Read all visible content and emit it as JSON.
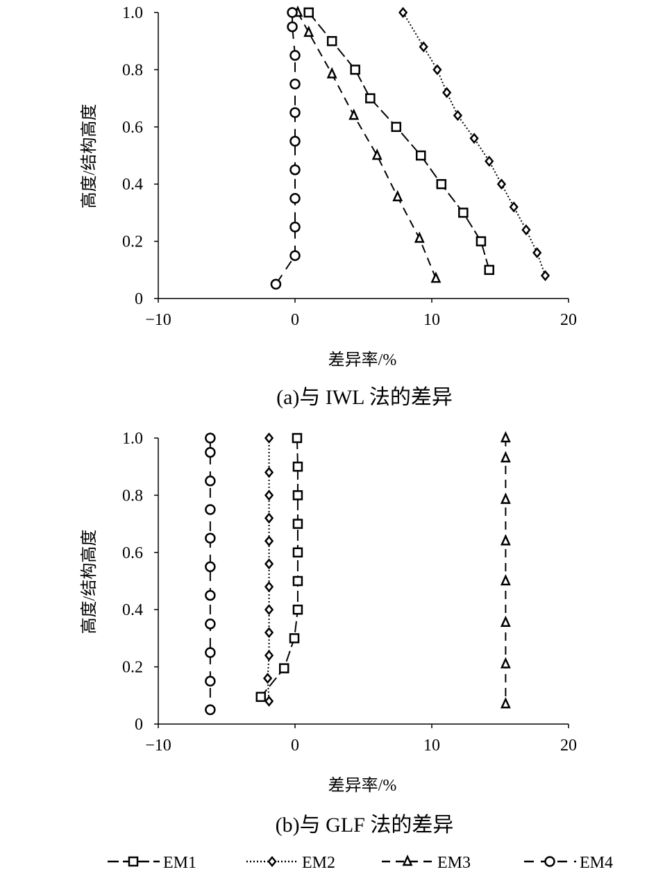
{
  "legend": [
    {
      "name": "EM1",
      "marker": "square",
      "dash": "long-dash"
    },
    {
      "name": "EM2",
      "marker": "diamond",
      "dash": "dotted"
    },
    {
      "name": "EM3",
      "marker": "triangle",
      "dash": "dash"
    },
    {
      "name": "EM4",
      "marker": "circle",
      "dash": "long-dash-gap"
    }
  ],
  "chart_data": [
    {
      "type": "line",
      "caption": "(a)与 IWL 法的差异",
      "xlabel": "差异率/%",
      "ylabel": "高度/结构高度",
      "xlim": [
        -10,
        20
      ],
      "ylim": [
        0,
        1.0
      ],
      "xticks": [
        "−10",
        "0",
        "10",
        "20"
      ],
      "yticks": [
        "0",
        "0.2",
        "0.4",
        "0.6",
        "0.8",
        "1.0"
      ],
      "grid": false,
      "series": [
        {
          "name": "EM1",
          "x": [
            1.0,
            2.7,
            4.4,
            5.5,
            7.4,
            9.2,
            10.7,
            12.3,
            13.6,
            14.2
          ],
          "y": [
            1.0,
            0.9,
            0.8,
            0.7,
            0.6,
            0.5,
            0.4,
            0.3,
            0.2,
            0.1
          ]
        },
        {
          "name": "EM2",
          "x": [
            7.9,
            9.4,
            10.4,
            11.1,
            11.9,
            13.1,
            14.2,
            15.1,
            16.0,
            16.9,
            17.7,
            18.3
          ],
          "y": [
            1.0,
            0.88,
            0.8,
            0.72,
            0.64,
            0.56,
            0.48,
            0.4,
            0.32,
            0.24,
            0.16,
            0.08
          ]
        },
        {
          "name": "EM3",
          "x": [
            0.2,
            1.0,
            2.7,
            4.3,
            6.0,
            7.5,
            9.1,
            10.3
          ],
          "y": [
            1.0,
            0.93,
            0.785,
            0.64,
            0.5,
            0.355,
            0.21,
            0.07
          ]
        },
        {
          "name": "EM4",
          "x": [
            -0.2,
            -0.2,
            0,
            0,
            0,
            0,
            0,
            0,
            0,
            0,
            -1.4
          ],
          "y": [
            1.0,
            0.95,
            0.85,
            0.75,
            0.65,
            0.55,
            0.45,
            0.35,
            0.25,
            0.15,
            0.05
          ]
        }
      ]
    },
    {
      "type": "line",
      "caption": "(b)与 GLF 法的差异",
      "xlabel": "差异率/%",
      "ylabel": "高度/结构高度",
      "xlim": [
        -10,
        20
      ],
      "ylim": [
        0,
        1.0
      ],
      "xticks": [
        "−10",
        "0",
        "10",
        "20"
      ],
      "yticks": [
        "0",
        "0.2",
        "0.4",
        "0.6",
        "0.8",
        "1.0"
      ],
      "grid": false,
      "series": [
        {
          "name": "EM1",
          "x": [
            0.15,
            0.2,
            0.2,
            0.2,
            0.2,
            0.2,
            0.2,
            -0.05,
            -0.8,
            -2.5
          ],
          "y": [
            1.0,
            0.9,
            0.8,
            0.7,
            0.6,
            0.5,
            0.4,
            0.3,
            0.195,
            0.095
          ]
        },
        {
          "name": "EM2",
          "x": [
            -1.9,
            -1.9,
            -1.9,
            -1.9,
            -1.9,
            -1.9,
            -1.9,
            -1.9,
            -1.9,
            -1.9,
            -2.0,
            -1.9
          ],
          "y": [
            1.0,
            0.88,
            0.8,
            0.72,
            0.64,
            0.56,
            0.48,
            0.4,
            0.32,
            0.24,
            0.16,
            0.08
          ]
        },
        {
          "name": "EM3",
          "x": [
            15.4,
            15.4,
            15.4,
            15.4,
            15.4,
            15.4,
            15.4,
            15.4
          ],
          "y": [
            1.0,
            0.93,
            0.785,
            0.64,
            0.5,
            0.355,
            0.21,
            0.07
          ]
        },
        {
          "name": "EM4",
          "x": [
            -6.2,
            -6.2,
            -6.2,
            -6.2,
            -6.2,
            -6.2,
            -6.2,
            -6.2,
            -6.2,
            -6.2,
            -6.2
          ],
          "y": [
            1.0,
            0.95,
            0.85,
            0.75,
            0.65,
            0.55,
            0.45,
            0.35,
            0.25,
            0.15,
            0.05
          ]
        }
      ]
    }
  ]
}
